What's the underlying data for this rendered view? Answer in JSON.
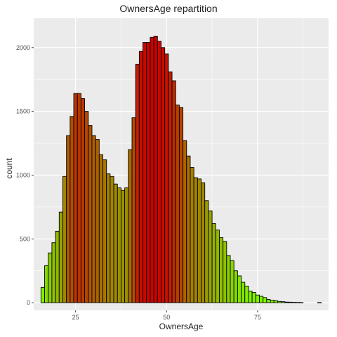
{
  "chart_data": {
    "type": "bar",
    "title": "OwnersAge repartition",
    "xlabel": "OwnersAge",
    "ylabel": "count",
    "x": [
      16,
      17,
      18,
      19,
      20,
      21,
      22,
      23,
      24,
      25,
      26,
      27,
      28,
      29,
      30,
      31,
      32,
      33,
      34,
      35,
      36,
      37,
      38,
      39,
      40,
      41,
      42,
      43,
      44,
      45,
      46,
      47,
      48,
      49,
      50,
      51,
      52,
      53,
      54,
      55,
      56,
      57,
      58,
      59,
      60,
      61,
      62,
      63,
      64,
      65,
      66,
      67,
      68,
      69,
      70,
      71,
      72,
      73,
      74,
      75,
      76,
      77,
      78,
      79,
      80,
      81,
      82,
      83,
      84,
      85,
      86,
      87,
      88,
      89,
      90,
      91,
      92
    ],
    "values": [
      120,
      290,
      390,
      470,
      560,
      710,
      990,
      1310,
      1460,
      1640,
      1640,
      1600,
      1500,
      1390,
      1310,
      1280,
      1160,
      1120,
      1010,
      990,
      930,
      900,
      880,
      900,
      1200,
      1450,
      1870,
      1970,
      2040,
      2040,
      2080,
      2090,
      2050,
      2000,
      1950,
      1810,
      1740,
      1550,
      1530,
      1270,
      1150,
      1060,
      980,
      970,
      940,
      800,
      720,
      620,
      570,
      510,
      480,
      370,
      330,
      250,
      210,
      160,
      130,
      90,
      80,
      60,
      50,
      40,
      25,
      20,
      15,
      10,
      8,
      5,
      4,
      3,
      2,
      1,
      0,
      0,
      0,
      0,
      1
    ],
    "xticks": [
      25,
      50,
      75
    ],
    "yticks": [
      0,
      500,
      1000,
      1500,
      2000
    ],
    "xlim": [
      13.5,
      94.5
    ],
    "ylim": [
      -60,
      2230
    ],
    "grid": true,
    "panel_color": "#EBEBEB",
    "grid_color": "#FFFFFF",
    "bar_outline": "#000000",
    "fill_low": "#7CFC00",
    "fill_high": "#CC0000"
  }
}
